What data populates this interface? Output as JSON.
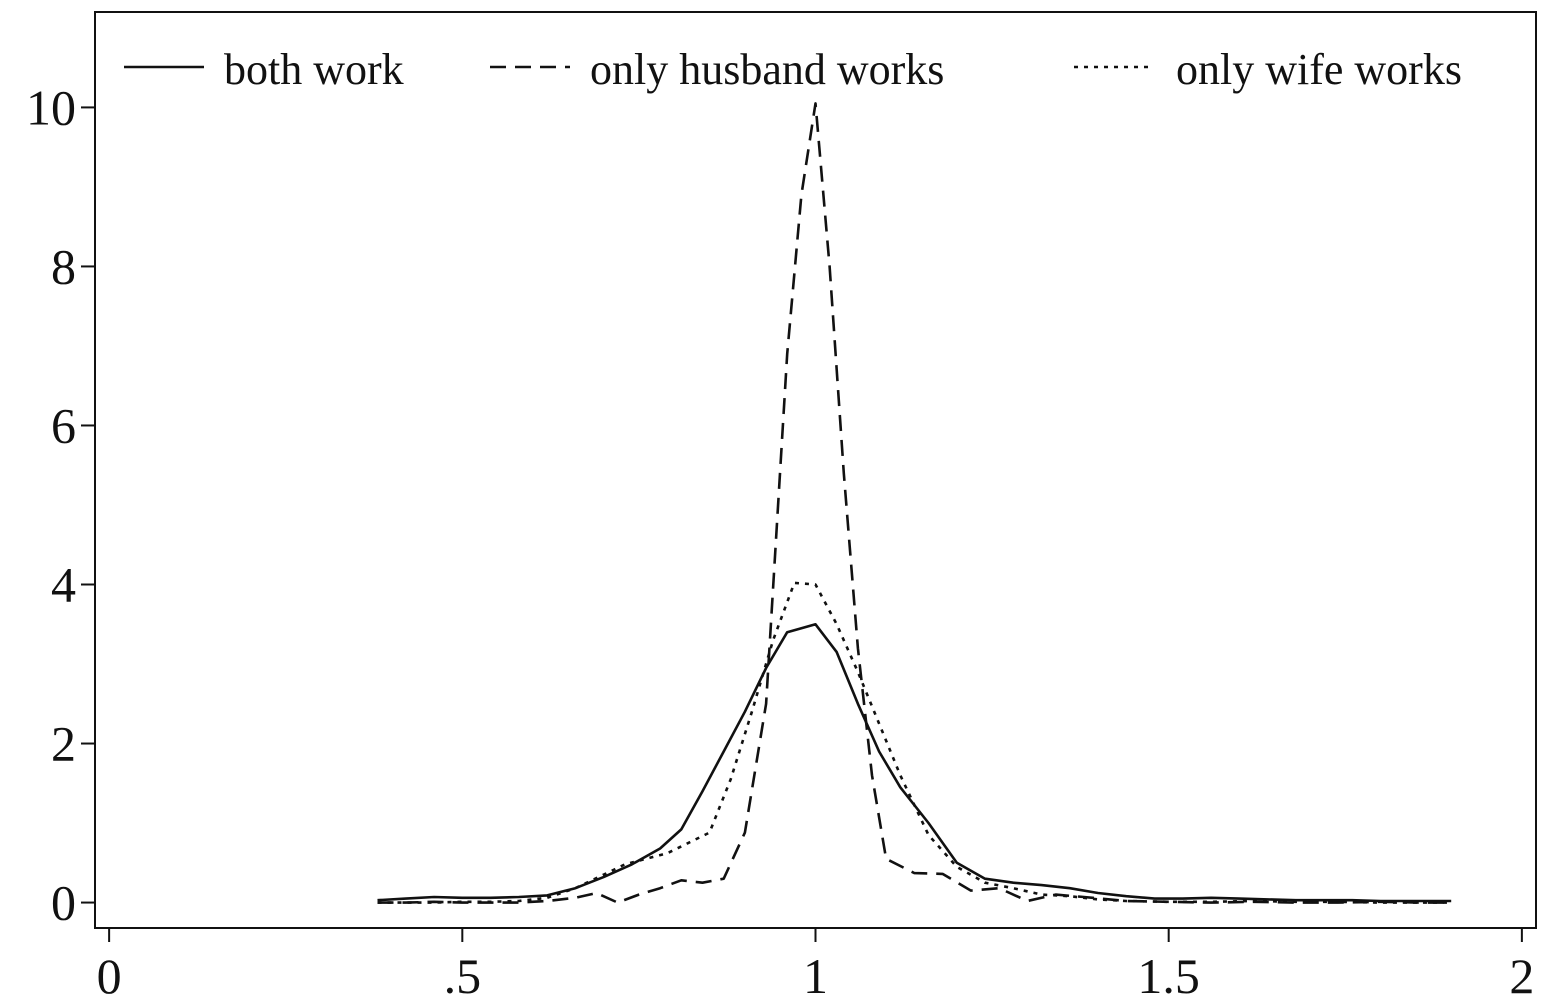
{
  "chart_data": {
    "type": "line",
    "title": "",
    "xlabel": "",
    "ylabel": "",
    "xlim": [
      -0.02,
      2.02
    ],
    "ylim": [
      -0.32,
      11.2
    ],
    "x_ticks": [
      0,
      0.5,
      1,
      1.5,
      2
    ],
    "x_tick_labels": [
      "0",
      ".5",
      "1",
      "1.5",
      "2"
    ],
    "y_ticks": [
      0,
      2,
      4,
      6,
      8,
      10
    ],
    "y_tick_labels": [
      "0",
      "2",
      "4",
      "6",
      "8",
      "10"
    ],
    "grid": false,
    "legend_position": "top",
    "series": [
      {
        "name": "both work",
        "style": "solid",
        "x": [
          0.38,
          0.42,
          0.46,
          0.5,
          0.54,
          0.58,
          0.62,
          0.66,
          0.7,
          0.74,
          0.78,
          0.81,
          0.84,
          0.87,
          0.9,
          0.93,
          0.96,
          0.98,
          1.0,
          1.03,
          1.06,
          1.09,
          1.12,
          1.16,
          1.2,
          1.24,
          1.28,
          1.32,
          1.36,
          1.4,
          1.44,
          1.48,
          1.52,
          1.56,
          1.6,
          1.64,
          1.68,
          1.72,
          1.76,
          1.8,
          1.84,
          1.88,
          1.9
        ],
        "values": [
          0.03,
          0.05,
          0.07,
          0.06,
          0.06,
          0.07,
          0.09,
          0.18,
          0.32,
          0.48,
          0.68,
          0.92,
          1.4,
          1.9,
          2.4,
          2.95,
          3.4,
          3.45,
          3.5,
          3.15,
          2.5,
          1.9,
          1.45,
          1.0,
          0.5,
          0.3,
          0.25,
          0.22,
          0.18,
          0.12,
          0.08,
          0.05,
          0.05,
          0.06,
          0.05,
          0.04,
          0.03,
          0.03,
          0.03,
          0.02,
          0.02,
          0.02,
          0.02
        ]
      },
      {
        "name": "only husband works",
        "style": "dashed",
        "x": [
          0.38,
          0.42,
          0.46,
          0.5,
          0.54,
          0.58,
          0.62,
          0.66,
          0.69,
          0.72,
          0.75,
          0.78,
          0.81,
          0.84,
          0.87,
          0.9,
          0.93,
          0.96,
          0.98,
          1.0,
          1.02,
          1.04,
          1.06,
          1.08,
          1.1,
          1.14,
          1.18,
          1.22,
          1.26,
          1.3,
          1.34,
          1.38,
          1.44,
          1.5,
          1.56,
          1.62,
          1.68,
          1.74,
          1.8,
          1.86,
          1.9
        ],
        "values": [
          0.0,
          0.0,
          0.01,
          0.0,
          0.0,
          0.0,
          0.02,
          0.06,
          0.12,
          0.0,
          0.1,
          0.18,
          0.28,
          0.25,
          0.3,
          0.88,
          2.5,
          6.9,
          8.9,
          10.05,
          8.0,
          5.4,
          3.2,
          1.6,
          0.55,
          0.37,
          0.36,
          0.15,
          0.18,
          0.02,
          0.1,
          0.07,
          0.02,
          0.01,
          0.0,
          0.01,
          0.0,
          0.0,
          0.01,
          0.0,
          0.0
        ]
      },
      {
        "name": "only wife works",
        "style": "dotted",
        "x": [
          0.38,
          0.42,
          0.46,
          0.5,
          0.54,
          0.58,
          0.62,
          0.66,
          0.7,
          0.73,
          0.76,
          0.79,
          0.82,
          0.85,
          0.88,
          0.91,
          0.94,
          0.97,
          1.0,
          1.03,
          1.06,
          1.09,
          1.12,
          1.16,
          1.2,
          1.24,
          1.28,
          1.32,
          1.36,
          1.4,
          1.44,
          1.5,
          1.56,
          1.62,
          1.68,
          1.74,
          1.8,
          1.86,
          1.9
        ],
        "values": [
          0.0,
          0.0,
          0.0,
          0.01,
          0.01,
          0.02,
          0.06,
          0.18,
          0.35,
          0.48,
          0.55,
          0.62,
          0.75,
          0.88,
          1.55,
          2.4,
          3.3,
          4.02,
          4.0,
          3.5,
          2.9,
          2.25,
          1.6,
          0.85,
          0.45,
          0.25,
          0.18,
          0.1,
          0.08,
          0.04,
          0.02,
          0.01,
          0.01,
          0.02,
          0.01,
          0.01,
          0.0,
          0.0,
          0.0
        ]
      }
    ]
  }
}
